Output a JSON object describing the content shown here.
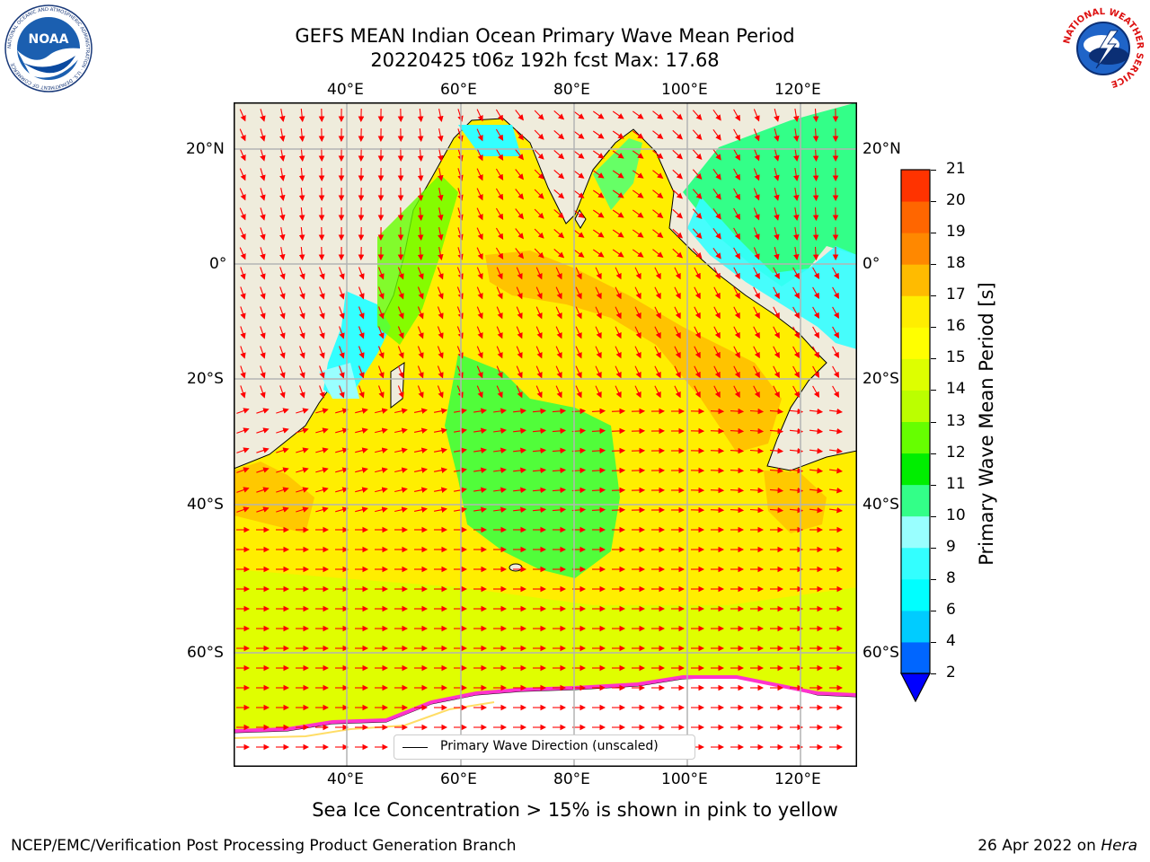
{
  "header": {
    "title_line1": "GEFS MEAN Indian Ocean Primary Wave Mean Period",
    "title_line2": "20220425 t06z 192h fcst   Max: 17.68"
  },
  "logos": {
    "left_text": "NOAA",
    "left_ring_text": "NATIONAL OCEANIC AND ATMOSPHERIC ADMINISTRATION · U.S. DEPARTMENT OF COMMERCE",
    "right_ring_text": "NATIONAL WEATHER SERVICE"
  },
  "map": {
    "lon_ticks": [
      "40°E",
      "60°E",
      "80°E",
      "100°E",
      "120°E"
    ],
    "lat_ticks_left": [
      "20°N",
      "0°",
      "20°S",
      "40°S",
      "60°S"
    ],
    "lat_ticks_right": [
      "20°N",
      "0°",
      "20°S",
      "40°S",
      "60°S"
    ],
    "lon_range": [
      20,
      130
    ],
    "lat_range": [
      -72,
      27
    ],
    "land_color": "#efecdc",
    "arrow_color": "#ff0000",
    "legend_label": "Primary Wave Direction (unscaled)"
  },
  "colorbar": {
    "label": "Primary Wave Mean Period [s]",
    "ticks": [
      "2",
      "4",
      "6",
      "8",
      "9",
      "10",
      "11",
      "12",
      "13",
      "14",
      "15",
      "16",
      "17",
      "18",
      "19",
      "20",
      "21"
    ],
    "colors": [
      "#0066ff",
      "#00ccff",
      "#00ffff",
      "#33ffff",
      "#99ffff",
      "#33ff88",
      "#00ee00",
      "#66ff00",
      "#bbff00",
      "#ddff00",
      "#ffff00",
      "#ffee00",
      "#ffbb00",
      "#ff8800",
      "#ff6600",
      "#ff3300"
    ],
    "extend_color": "#0000ff"
  },
  "subtitle": "Sea Ice Concentration > 15% is shown in pink to yellow",
  "footer": {
    "left": "NCEP/EMC/Verification Post Processing Product Generation Branch",
    "right_prefix": "26 Apr 2022 on ",
    "right_host": "Hera"
  }
}
